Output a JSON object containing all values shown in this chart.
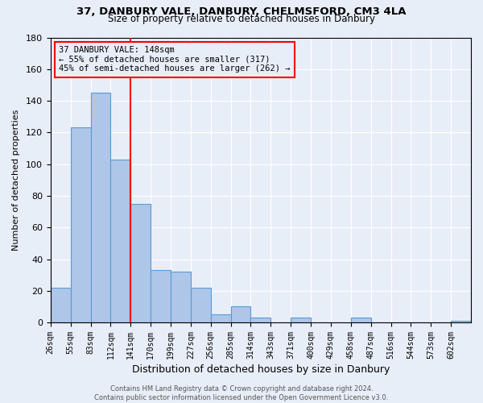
{
  "title1": "37, DANBURY VALE, DANBURY, CHELMSFORD, CM3 4LA",
  "title2": "Size of property relative to detached houses in Danbury",
  "xlabel": "Distribution of detached houses by size in Danbury",
  "ylabel": "Number of detached properties",
  "bar_labels": [
    "26sqm",
    "55sqm",
    "83sqm",
    "112sqm",
    "141sqm",
    "170sqm",
    "199sqm",
    "227sqm",
    "256sqm",
    "285sqm",
    "314sqm",
    "343sqm",
    "371sqm",
    "400sqm",
    "429sqm",
    "458sqm",
    "487sqm",
    "516sqm",
    "544sqm",
    "573sqm",
    "602sqm"
  ],
  "bar_values": [
    22,
    123,
    145,
    103,
    75,
    33,
    32,
    22,
    5,
    10,
    3,
    0,
    3,
    0,
    0,
    3,
    0,
    0,
    0,
    0,
    1
  ],
  "bar_color": "#aec6e8",
  "bar_edge_color": "#5b9bd5",
  "vline_color": "red",
  "ylim": [
    0,
    180
  ],
  "yticks": [
    0,
    20,
    40,
    60,
    80,
    100,
    120,
    140,
    160,
    180
  ],
  "annotation_title": "37 DANBURY VALE: 148sqm",
  "annotation_line1": "← 55% of detached houses are smaller (317)",
  "annotation_line2": "45% of semi-detached houses are larger (262) →",
  "annotation_box_color": "red",
  "footer1": "Contains HM Land Registry data © Crown copyright and database right 2024.",
  "footer2": "Contains public sector information licensed under the Open Government Licence v3.0.",
  "bg_color": "#e8eef8"
}
